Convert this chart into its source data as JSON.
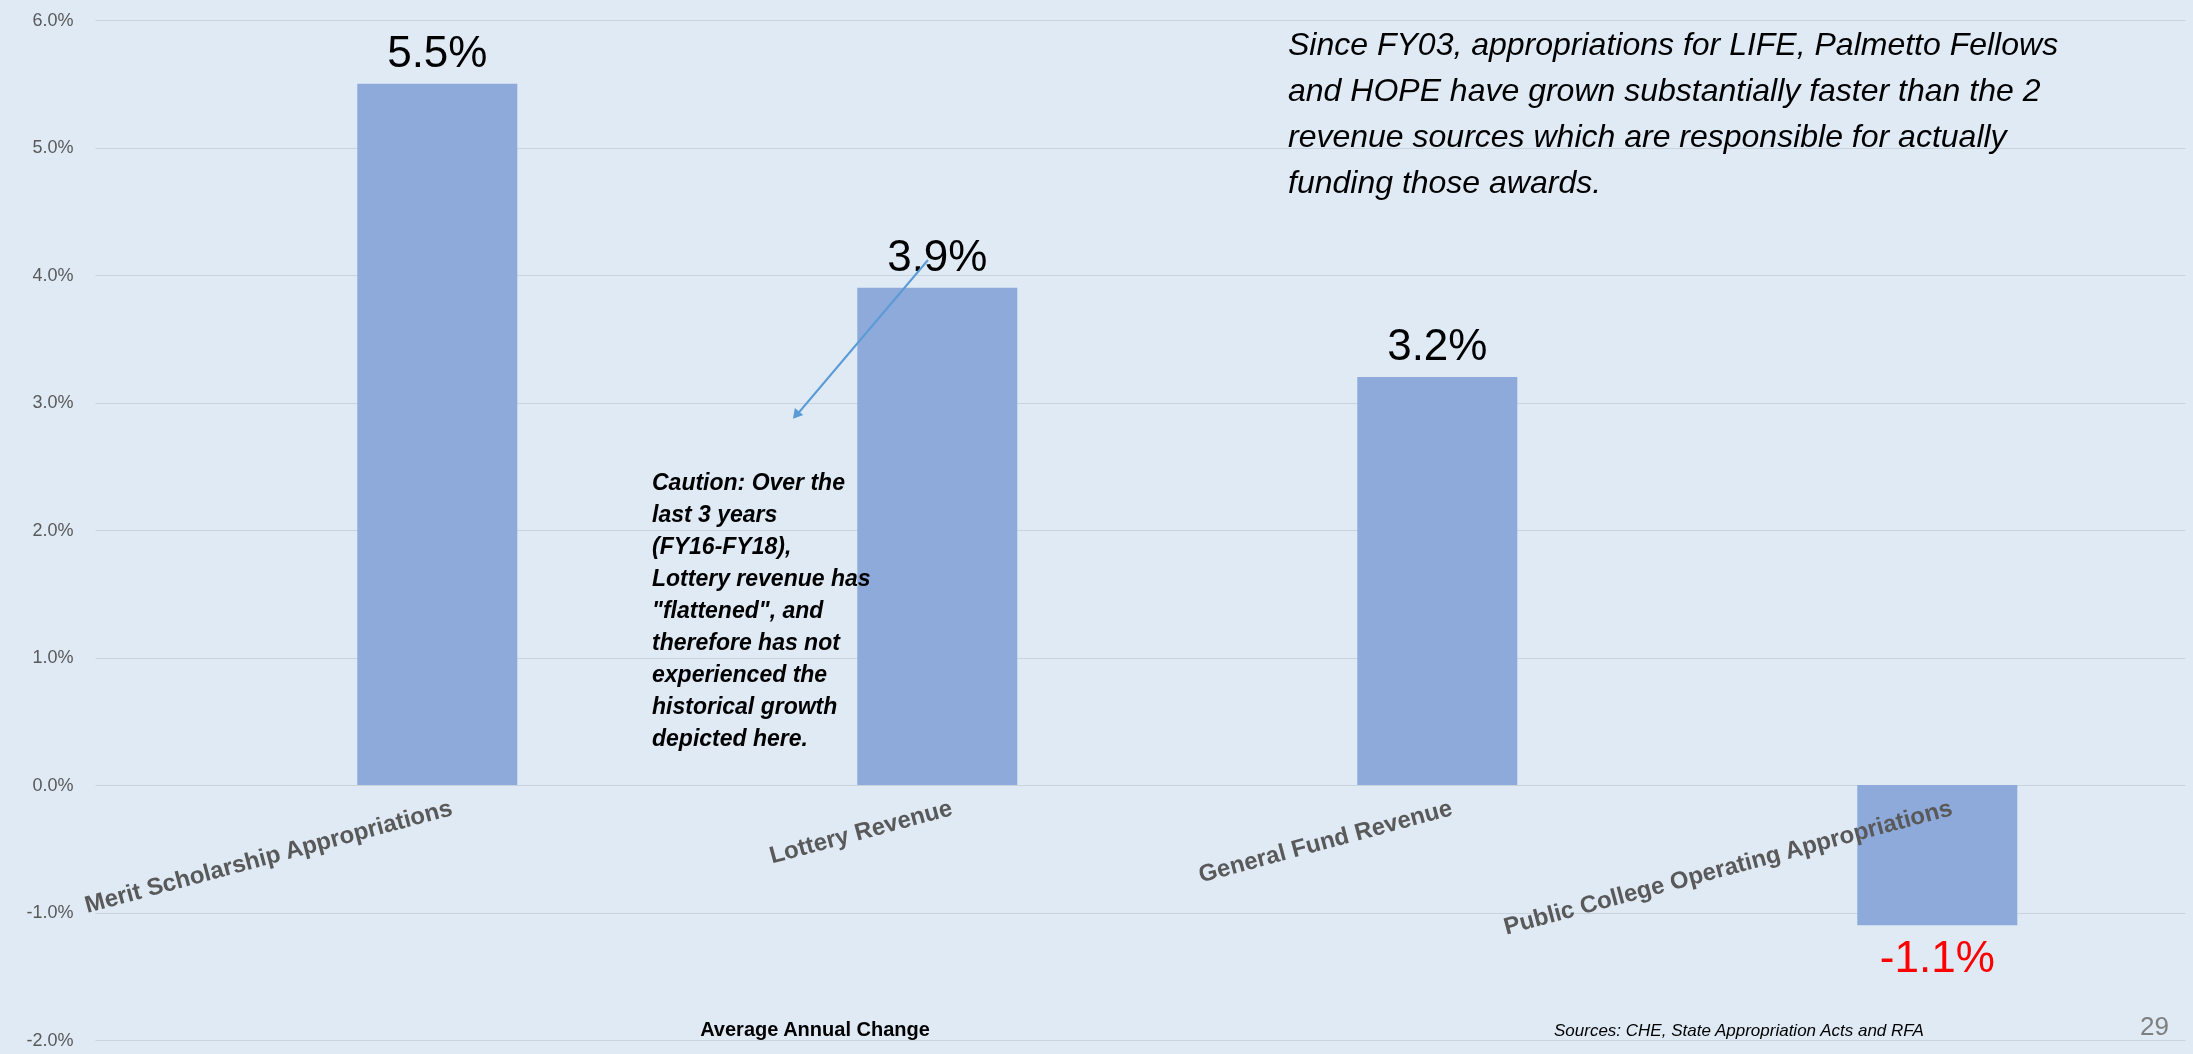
{
  "chart_data": {
    "type": "bar",
    "categories": [
      "Merit Scholarship Appropriations",
      "Lottery Revenue",
      "General Fund Revenue",
      "Public College Operating Appropriations"
    ],
    "values": [
      5.5,
      3.9,
      3.2,
      -1.1
    ],
    "value_labels": [
      "5.5%",
      "3.9%",
      "3.2%",
      "-1.1%"
    ],
    "color": "#8eaadb",
    "xlabel": "Average Annual Change",
    "ylim": [
      -2,
      6
    ],
    "yticks": [
      {
        "value": -2,
        "label": "-2.0%"
      },
      {
        "value": -1,
        "label": "-1.0%"
      },
      {
        "value": 0,
        "label": "0.0%"
      },
      {
        "value": 1,
        "label": "1.0%"
      },
      {
        "value": 2,
        "label": "2.0%"
      },
      {
        "value": 3,
        "label": "3.0%"
      },
      {
        "value": 4,
        "label": "4.0%"
      },
      {
        "value": 5,
        "label": "5.0%"
      },
      {
        "value": 6,
        "label": "6.0%"
      }
    ],
    "grid": "y",
    "annotations": [
      "Since FY03, appropriations for LIFE, Palmetto Fellows and HOPE have grown substantially faster than the 2 revenue sources which are responsible for actually funding those awards.",
      "Caution: Over the last 3 years (FY16-FY18), Lottery revenue has \"flattened\", and therefore has not experienced the historical growth depicted here.",
      "Sources: CHE, State Appropriation Acts and RFA",
      "29"
    ]
  }
}
